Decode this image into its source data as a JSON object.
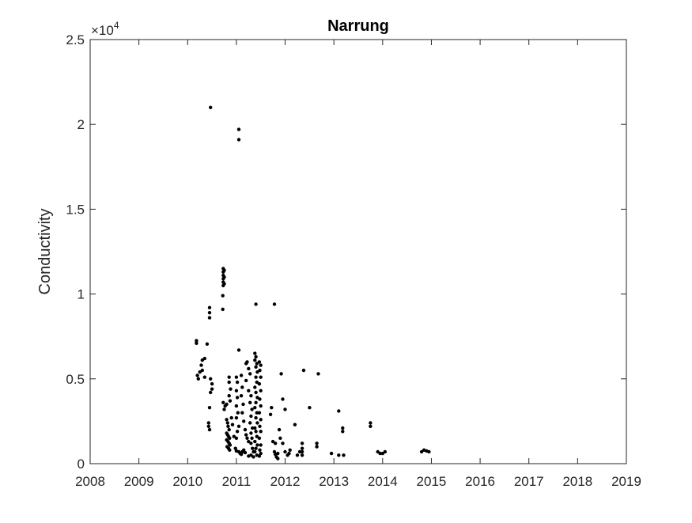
{
  "chart_data": {
    "type": "scatter",
    "title": "Narrung",
    "xlabel": "",
    "ylabel": "Conductivity",
    "xlim": [
      2008,
      2019
    ],
    "ylim": [
      0,
      25000
    ],
    "x_ticks": [
      2008,
      2009,
      2010,
      2011,
      2012,
      2013,
      2014,
      2015,
      2016,
      2017,
      2018,
      2019
    ],
    "y_ticks": [
      0,
      5000,
      10000,
      15000,
      20000,
      25000
    ],
    "y_tick_labels": [
      "0",
      "0.5",
      "1",
      "1.5",
      "2",
      "2.5"
    ],
    "y_exponent_base": "×10",
    "y_exponent_power": "4",
    "grid": false,
    "marker_color": "#000000",
    "points": [
      [
        2010.47,
        21000
      ],
      [
        2011.05,
        19700
      ],
      [
        2011.05,
        19100
      ],
      [
        2010.73,
        11500
      ],
      [
        2010.73,
        11300
      ],
      [
        2010.73,
        11100
      ],
      [
        2010.73,
        10900
      ],
      [
        2010.73,
        10700
      ],
      [
        2010.73,
        10500
      ],
      [
        2010.75,
        11400
      ],
      [
        2010.75,
        11000
      ],
      [
        2010.75,
        10600
      ],
      [
        2010.72,
        9900
      ],
      [
        2010.72,
        9100
      ],
      [
        2010.45,
        9200
      ],
      [
        2010.45,
        8900
      ],
      [
        2010.45,
        8600
      ],
      [
        2011.4,
        9400
      ],
      [
        2011.78,
        9400
      ],
      [
        2010.18,
        7250
      ],
      [
        2010.18,
        7100
      ],
      [
        2010.4,
        7050
      ],
      [
        2011.05,
        6700
      ],
      [
        2010.3,
        6100
      ],
      [
        2010.35,
        6200
      ],
      [
        2010.28,
        5800
      ],
      [
        2010.25,
        5400
      ],
      [
        2010.2,
        5200
      ],
      [
        2010.22,
        5000
      ],
      [
        2010.3,
        5500
      ],
      [
        2010.35,
        5100
      ],
      [
        2010.47,
        5000
      ],
      [
        2010.5,
        4700
      ],
      [
        2010.5,
        4400
      ],
      [
        2010.47,
        4200
      ],
      [
        2010.45,
        3300
      ],
      [
        2010.43,
        2400
      ],
      [
        2010.43,
        2200
      ],
      [
        2010.45,
        2000
      ],
      [
        2010.73,
        3600
      ],
      [
        2010.77,
        3400
      ],
      [
        2010.75,
        3200
      ],
      [
        2010.8,
        3500
      ],
      [
        2010.85,
        5100
      ],
      [
        2010.85,
        4800
      ],
      [
        2010.88,
        4400
      ],
      [
        2010.85,
        4000
      ],
      [
        2010.87,
        3700
      ],
      [
        2010.8,
        2600
      ],
      [
        2010.82,
        2400
      ],
      [
        2010.83,
        2200
      ],
      [
        2010.85,
        2000
      ],
      [
        2010.8,
        1800
      ],
      [
        2010.82,
        1700
      ],
      [
        2010.84,
        1600
      ],
      [
        2010.86,
        1500
      ],
      [
        2010.8,
        1400
      ],
      [
        2010.83,
        1300
      ],
      [
        2010.85,
        1200
      ],
      [
        2010.87,
        1100
      ],
      [
        2010.81,
        1000
      ],
      [
        2010.84,
        900
      ],
      [
        2010.86,
        800
      ],
      [
        2010.9,
        2700
      ],
      [
        2010.92,
        2300
      ],
      [
        2010.95,
        1600
      ],
      [
        2011.0,
        5100
      ],
      [
        2011.02,
        4800
      ],
      [
        2011.0,
        4300
      ],
      [
        2011.02,
        3900
      ],
      [
        2011.0,
        3400
      ],
      [
        2011.03,
        3000
      ],
      [
        2011.0,
        2700
      ],
      [
        2011.05,
        2200
      ],
      [
        2011.02,
        1900
      ],
      [
        2011.0,
        1500
      ],
      [
        2010.98,
        900
      ],
      [
        2011.0,
        750
      ],
      [
        2011.05,
        700
      ],
      [
        2011.08,
        600
      ],
      [
        2011.1,
        550
      ],
      [
        2011.12,
        700
      ],
      [
        2011.15,
        800
      ],
      [
        2011.18,
        650
      ],
      [
        2011.1,
        5200
      ],
      [
        2011.12,
        4500
      ],
      [
        2011.1,
        4000
      ],
      [
        2011.14,
        3500
      ],
      [
        2011.12,
        3000
      ],
      [
        2011.15,
        2500
      ],
      [
        2011.18,
        2000
      ],
      [
        2011.2,
        1700
      ],
      [
        2011.22,
        1500
      ],
      [
        2011.25,
        1300
      ],
      [
        2011.2,
        5900
      ],
      [
        2011.22,
        6000
      ],
      [
        2011.25,
        5600
      ],
      [
        2011.28,
        5300
      ],
      [
        2011.2,
        4900
      ],
      [
        2011.25,
        4300
      ],
      [
        2011.3,
        4000
      ],
      [
        2011.28,
        3600
      ],
      [
        2011.32,
        3200
      ],
      [
        2011.3,
        2800
      ],
      [
        2011.28,
        2400
      ],
      [
        2011.33,
        2100
      ],
      [
        2011.3,
        1800
      ],
      [
        2011.32,
        1500
      ],
      [
        2011.3,
        1200
      ],
      [
        2011.33,
        900
      ],
      [
        2011.35,
        700
      ],
      [
        2011.3,
        500
      ],
      [
        2011.35,
        400
      ],
      [
        2011.25,
        450
      ],
      [
        2011.38,
        6500
      ],
      [
        2011.4,
        6300
      ],
      [
        2011.38,
        6100
      ],
      [
        2011.42,
        5900
      ],
      [
        2011.4,
        5700
      ],
      [
        2011.43,
        5400
      ],
      [
        2011.4,
        5100
      ],
      [
        2011.42,
        4800
      ],
      [
        2011.38,
        4500
      ],
      [
        2011.4,
        4200
      ],
      [
        2011.43,
        3900
      ],
      [
        2011.4,
        3600
      ],
      [
        2011.38,
        3300
      ],
      [
        2011.42,
        3000
      ],
      [
        2011.4,
        2700
      ],
      [
        2011.43,
        2400
      ],
      [
        2011.38,
        2100
      ],
      [
        2011.4,
        1900
      ],
      [
        2011.42,
        1600
      ],
      [
        2011.38,
        1300
      ],
      [
        2011.43,
        1100
      ],
      [
        2011.4,
        900
      ],
      [
        2011.38,
        700
      ],
      [
        2011.42,
        500
      ],
      [
        2011.47,
        6000
      ],
      [
        2011.5,
        5800
      ],
      [
        2011.48,
        5500
      ],
      [
        2011.5,
        5100
      ],
      [
        2011.47,
        4700
      ],
      [
        2011.5,
        4300
      ],
      [
        2011.48,
        3800
      ],
      [
        2011.5,
        3400
      ],
      [
        2011.47,
        3000
      ],
      [
        2011.5,
        2600
      ],
      [
        2011.48,
        2200
      ],
      [
        2011.5,
        1900
      ],
      [
        2011.47,
        1500
      ],
      [
        2011.5,
        1100
      ],
      [
        2011.48,
        800
      ],
      [
        2011.5,
        600
      ],
      [
        2011.47,
        450
      ],
      [
        2011.72,
        3300
      ],
      [
        2011.7,
        2900
      ],
      [
        2011.75,
        1300
      ],
      [
        2011.8,
        1200
      ],
      [
        2011.78,
        700
      ],
      [
        2011.8,
        550
      ],
      [
        2011.82,
        400
      ],
      [
        2011.85,
        600
      ],
      [
        2011.85,
        300
      ],
      [
        2011.88,
        2000
      ],
      [
        2011.9,
        1500
      ],
      [
        2011.92,
        5300
      ],
      [
        2011.95,
        3800
      ],
      [
        2012.0,
        3200
      ],
      [
        2011.95,
        1200
      ],
      [
        2012.0,
        700
      ],
      [
        2012.05,
        500
      ],
      [
        2012.1,
        800
      ],
      [
        2012.08,
        600
      ],
      [
        2012.2,
        2300
      ],
      [
        2012.25,
        500
      ],
      [
        2012.3,
        700
      ],
      [
        2012.35,
        1200
      ],
      [
        2012.35,
        900
      ],
      [
        2012.35,
        700
      ],
      [
        2012.35,
        500
      ],
      [
        2012.38,
        5500
      ],
      [
        2012.5,
        3300
      ],
      [
        2012.65,
        1200
      ],
      [
        2012.65,
        1000
      ],
      [
        2012.68,
        5300
      ],
      [
        2012.95,
        600
      ],
      [
        2013.1,
        3100
      ],
      [
        2013.1,
        500
      ],
      [
        2013.18,
        2100
      ],
      [
        2013.18,
        1900
      ],
      [
        2013.2,
        500
      ],
      [
        2013.75,
        2400
      ],
      [
        2013.75,
        2200
      ],
      [
        2013.9,
        700
      ],
      [
        2013.95,
        600
      ],
      [
        2014.0,
        600
      ],
      [
        2014.05,
        700
      ],
      [
        2014.8,
        700
      ],
      [
        2014.85,
        800
      ],
      [
        2014.9,
        750
      ],
      [
        2014.95,
        700
      ]
    ]
  }
}
